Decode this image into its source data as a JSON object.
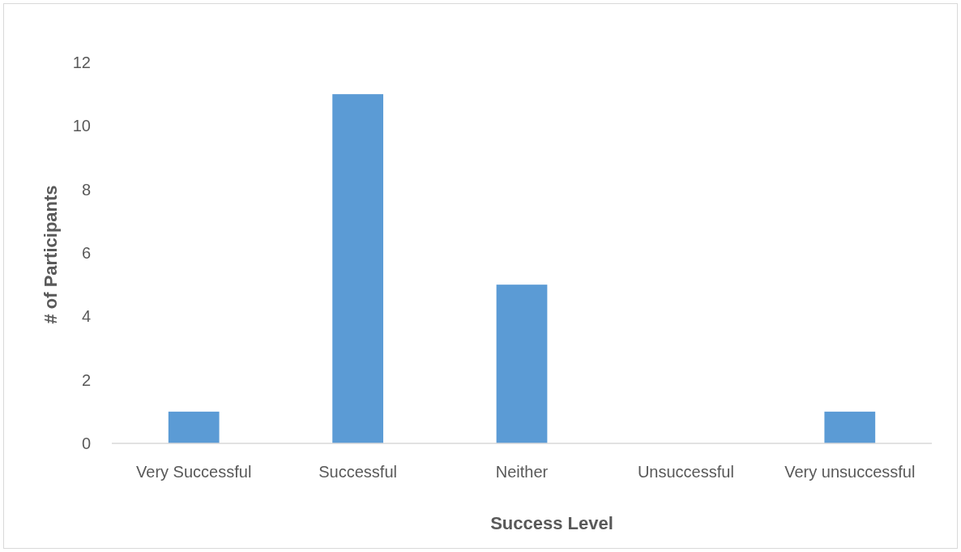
{
  "chart_data": {
    "type": "bar",
    "xlabel": "Success Level",
    "ylabel": "# of Participants",
    "categories": [
      "Very Successful",
      "Successful",
      "Neither",
      "Unsuccessful",
      "Very unsuccessful"
    ],
    "values": [
      1,
      11,
      5,
      0,
      1
    ],
    "color": "#5b9bd5",
    "ylim": [
      0,
      12
    ],
    "yticks": [
      0,
      2,
      4,
      6,
      8,
      10,
      12
    ],
    "grid": false
  }
}
